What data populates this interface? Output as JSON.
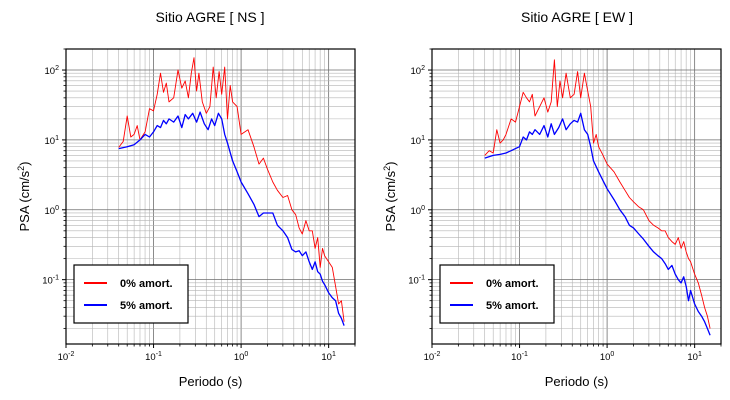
{
  "chart_data": [
    {
      "type": "line",
      "title": "Sitio AGRE [ NS ]",
      "xlabel": "Periodo (s)",
      "ylabel": "PSA (cm/s",
      "ylabel_sup": "2",
      "ylabel_close": ")",
      "xscale": "log",
      "yscale": "log",
      "xlim": [
        0.01,
        20
      ],
      "ylim": [
        0.012,
        200
      ],
      "grid": true,
      "legend_position": "bottom-left",
      "xticks": [
        {
          "base": "10",
          "exp": "-2"
        },
        {
          "base": "10",
          "exp": "-1"
        },
        {
          "base": "10",
          "exp": "0"
        },
        {
          "base": "10",
          "exp": "1"
        }
      ],
      "yticks": [
        {
          "base": "10",
          "exp": "-1"
        },
        {
          "base": "10",
          "exp": "0"
        },
        {
          "base": "10",
          "exp": "1"
        },
        {
          "base": "10",
          "exp": "2"
        }
      ],
      "series": [
        {
          "name": "0% amort.",
          "color": "#ff0000",
          "x": [
            0.04,
            0.045,
            0.05,
            0.055,
            0.06,
            0.065,
            0.07,
            0.08,
            0.09,
            0.1,
            0.11,
            0.12,
            0.13,
            0.14,
            0.15,
            0.17,
            0.19,
            0.21,
            0.23,
            0.25,
            0.27,
            0.29,
            0.31,
            0.33,
            0.36,
            0.4,
            0.44,
            0.48,
            0.52,
            0.56,
            0.6,
            0.65,
            0.7,
            0.75,
            0.8,
            0.9,
            1.0,
            1.2,
            1.4,
            1.6,
            1.8,
            2.0,
            2.3,
            2.6,
            3.0,
            3.4,
            3.8,
            4.2,
            4.6,
            5.0,
            5.5,
            6.0,
            6.5,
            7.0,
            7.5,
            8.0,
            8.5,
            9.0,
            10,
            11,
            12,
            13,
            14,
            15
          ],
          "y": [
            7.8,
            9.5,
            22,
            11,
            12,
            16,
            10,
            13,
            28,
            26,
            45,
            90,
            48,
            65,
            35,
            40,
            100,
            55,
            70,
            40,
            90,
            150,
            50,
            90,
            35,
            24,
            30,
            110,
            40,
            95,
            45,
            110,
            20,
            60,
            35,
            30,
            12,
            14,
            8,
            4.5,
            5.5,
            3.8,
            2.5,
            1.9,
            1.5,
            1.6,
            1.0,
            0.85,
            0.55,
            0.45,
            0.7,
            0.5,
            0.5,
            0.28,
            0.4,
            0.15,
            0.28,
            0.22,
            0.18,
            0.15,
            0.08,
            0.045,
            0.05,
            0.025
          ]
        },
        {
          "name": "5% amort.",
          "color": "#0000ff",
          "x": [
            0.04,
            0.05,
            0.06,
            0.07,
            0.08,
            0.09,
            0.1,
            0.11,
            0.12,
            0.13,
            0.14,
            0.15,
            0.17,
            0.19,
            0.21,
            0.23,
            0.25,
            0.28,
            0.31,
            0.34,
            0.38,
            0.42,
            0.46,
            0.5,
            0.55,
            0.6,
            0.65,
            0.7,
            0.8,
            0.9,
            1.0,
            1.2,
            1.4,
            1.6,
            1.8,
            2.0,
            2.3,
            2.6,
            3.0,
            3.4,
            3.8,
            4.2,
            4.6,
            5.0,
            5.5,
            6.0,
            6.5,
            7.0,
            7.5,
            8.0,
            8.5,
            9.0,
            10,
            11,
            12,
            13,
            14,
            15
          ],
          "y": [
            7.5,
            8.0,
            8.5,
            10,
            12,
            11,
            13,
            16,
            15,
            19,
            17,
            20,
            18,
            22,
            15,
            23,
            20,
            24,
            18,
            25,
            17,
            14,
            20,
            16,
            24,
            20,
            12,
            9,
            5,
            3.5,
            2.5,
            1.7,
            1.2,
            0.8,
            0.9,
            0.9,
            0.9,
            0.6,
            0.5,
            0.4,
            0.27,
            0.25,
            0.26,
            0.22,
            0.25,
            0.18,
            0.14,
            0.18,
            0.13,
            0.12,
            0.095,
            0.085,
            0.065,
            0.055,
            0.05,
            0.033,
            0.028,
            0.022
          ]
        }
      ]
    },
    {
      "type": "line",
      "title": "Sitio AGRE [ EW ]",
      "xlabel": "Periodo (s)",
      "ylabel": "PSA (cm/s",
      "ylabel_sup": "2",
      "ylabel_close": ")",
      "xscale": "log",
      "yscale": "log",
      "xlim": [
        0.01,
        20
      ],
      "ylim": [
        0.012,
        200
      ],
      "grid": true,
      "legend_position": "bottom-left",
      "xticks": [
        {
          "base": "10",
          "exp": "-2"
        },
        {
          "base": "10",
          "exp": "-1"
        },
        {
          "base": "10",
          "exp": "0"
        },
        {
          "base": "10",
          "exp": "1"
        }
      ],
      "yticks": [
        {
          "base": "10",
          "exp": "-1"
        },
        {
          "base": "10",
          "exp": "0"
        },
        {
          "base": "10",
          "exp": "1"
        },
        {
          "base": "10",
          "exp": "2"
        }
      ],
      "series": [
        {
          "name": "0% amort.",
          "color": "#ff0000",
          "x": [
            0.04,
            0.045,
            0.05,
            0.055,
            0.06,
            0.065,
            0.07,
            0.08,
            0.09,
            0.1,
            0.11,
            0.12,
            0.13,
            0.14,
            0.15,
            0.17,
            0.19,
            0.21,
            0.23,
            0.25,
            0.27,
            0.29,
            0.31,
            0.34,
            0.38,
            0.42,
            0.46,
            0.5,
            0.55,
            0.6,
            0.65,
            0.7,
            0.75,
            0.8,
            0.9,
            1.0,
            1.2,
            1.4,
            1.6,
            1.8,
            2.0,
            2.3,
            2.6,
            3.0,
            3.4,
            3.8,
            4.2,
            4.6,
            5.0,
            5.5,
            6.0,
            6.5,
            7.0,
            7.5,
            8.0,
            8.5,
            9.0,
            10,
            11,
            12,
            13,
            14,
            15
          ],
          "y": [
            6,
            7,
            6.5,
            14,
            9,
            10,
            12,
            20,
            18,
            30,
            48,
            40,
            35,
            45,
            22,
            30,
            40,
            25,
            35,
            140,
            30,
            70,
            40,
            90,
            40,
            45,
            95,
            40,
            90,
            50,
            30,
            9,
            12,
            8,
            6,
            4.5,
            3.5,
            2.5,
            1.9,
            1.5,
            1.3,
            1.1,
            1.0,
            0.7,
            0.6,
            0.55,
            0.5,
            0.5,
            0.4,
            0.35,
            0.32,
            0.4,
            0.28,
            0.35,
            0.25,
            0.2,
            0.18,
            0.12,
            0.09,
            0.06,
            0.04,
            0.03,
            0.02
          ]
        },
        {
          "name": "5% amort.",
          "color": "#0000ff",
          "x": [
            0.04,
            0.05,
            0.06,
            0.07,
            0.08,
            0.09,
            0.1,
            0.11,
            0.12,
            0.13,
            0.14,
            0.15,
            0.17,
            0.19,
            0.21,
            0.23,
            0.25,
            0.28,
            0.31,
            0.34,
            0.38,
            0.42,
            0.46,
            0.5,
            0.55,
            0.6,
            0.65,
            0.7,
            0.8,
            0.9,
            1.0,
            1.2,
            1.4,
            1.6,
            1.8,
            2.0,
            2.3,
            2.6,
            3.0,
            3.4,
            3.8,
            4.2,
            4.6,
            5.0,
            5.5,
            6.0,
            6.5,
            7.0,
            7.5,
            8.0,
            8.5,
            9.0,
            10,
            11,
            12,
            13,
            14,
            15
          ],
          "y": [
            5.5,
            6,
            6.2,
            6.5,
            7,
            7.5,
            8,
            11,
            10,
            13,
            12,
            14,
            12,
            16,
            11,
            17,
            12,
            15,
            20,
            14,
            17,
            19,
            18,
            24,
            14,
            12,
            8,
            5,
            3.5,
            2.6,
            2.0,
            1.4,
            1.0,
            0.8,
            0.6,
            0.55,
            0.45,
            0.38,
            0.3,
            0.25,
            0.22,
            0.2,
            0.17,
            0.14,
            0.16,
            0.12,
            0.1,
            0.09,
            0.11,
            0.08,
            0.05,
            0.07,
            0.045,
            0.035,
            0.03,
            0.025,
            0.02,
            0.016
          ]
        }
      ]
    }
  ]
}
